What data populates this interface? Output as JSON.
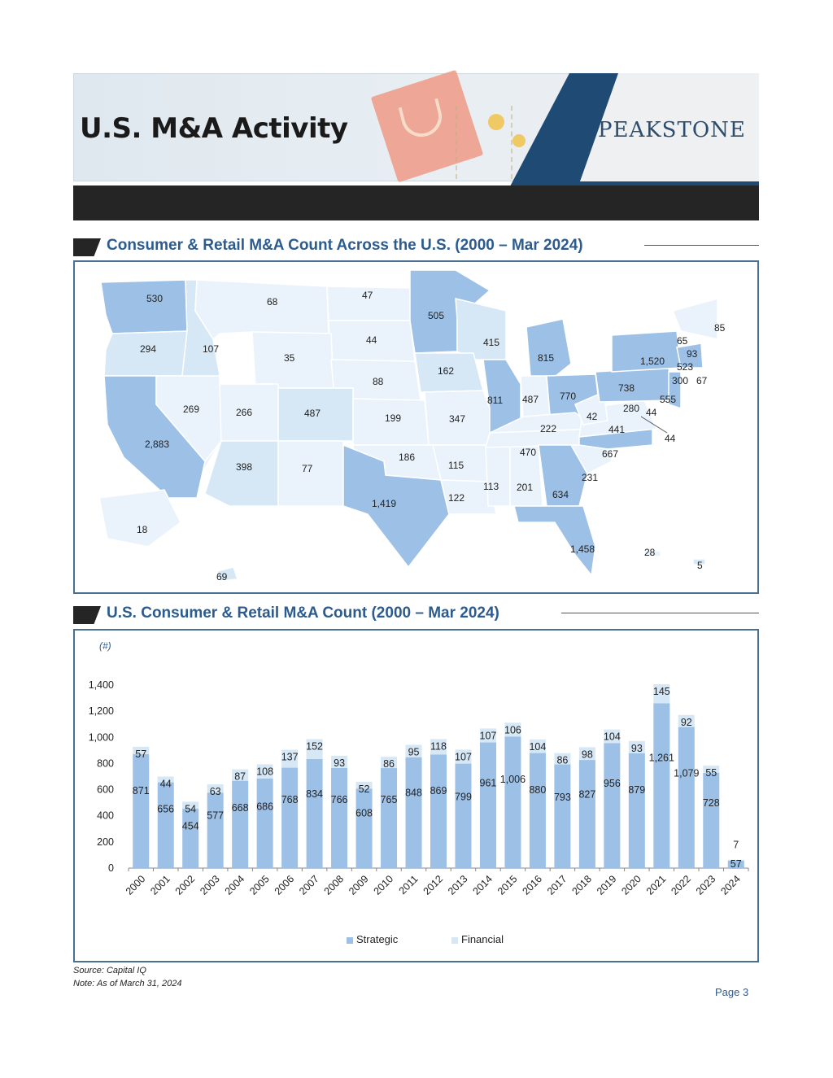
{
  "header": {
    "title": "U.S. M&A Activity",
    "logo_text": "PEAKSTONE"
  },
  "map_section": {
    "title": "Consumer & Retail M&A Count Across the U.S. (2000 – Mar 2024)",
    "states": [
      {
        "state": "WA",
        "value": "530"
      },
      {
        "state": "MT",
        "value": "68"
      },
      {
        "state": "ND",
        "value": "47"
      },
      {
        "state": "MN",
        "value": "505"
      },
      {
        "state": "ME",
        "value": "85"
      },
      {
        "state": "OR",
        "value": "294"
      },
      {
        "state": "ID",
        "value": "107"
      },
      {
        "state": "WY",
        "value": "35"
      },
      {
        "state": "SD",
        "value": "44"
      },
      {
        "state": "WI",
        "value": "415"
      },
      {
        "state": "VT",
        "value": "65"
      },
      {
        "state": "NH",
        "value": "93"
      },
      {
        "state": "MI",
        "value": "815"
      },
      {
        "state": "NY",
        "value": "1,520"
      },
      {
        "state": "MA",
        "value": "523"
      },
      {
        "state": "IA",
        "value": "162"
      },
      {
        "state": "NE",
        "value": "88"
      },
      {
        "state": "CT",
        "value": "300"
      },
      {
        "state": "RI",
        "value": "67"
      },
      {
        "state": "PA",
        "value": "738"
      },
      {
        "state": "NV",
        "value": "269"
      },
      {
        "state": "IL",
        "value": "811"
      },
      {
        "state": "IN",
        "value": "487"
      },
      {
        "state": "OH",
        "value": "770"
      },
      {
        "state": "NJ",
        "value": "555"
      },
      {
        "state": "UT",
        "value": "266"
      },
      {
        "state": "CO",
        "value": "487"
      },
      {
        "state": "KS",
        "value": "199"
      },
      {
        "state": "MO",
        "value": "347"
      },
      {
        "state": "DE",
        "value": "44"
      },
      {
        "state": "MD",
        "value": "280"
      },
      {
        "state": "WV",
        "value": "42"
      },
      {
        "state": "KY",
        "value": "222"
      },
      {
        "state": "VA",
        "value": "441"
      },
      {
        "state": "DC",
        "value": "44"
      },
      {
        "state": "CA",
        "value": "2,883"
      },
      {
        "state": "TN",
        "value": "470"
      },
      {
        "state": "NC",
        "value": "667"
      },
      {
        "state": "AZ",
        "value": "398"
      },
      {
        "state": "NM",
        "value": "77"
      },
      {
        "state": "OK",
        "value": "186"
      },
      {
        "state": "AR",
        "value": "115"
      },
      {
        "state": "SC",
        "value": "231"
      },
      {
        "state": "MS",
        "value": "113"
      },
      {
        "state": "AL",
        "value": "201"
      },
      {
        "state": "GA",
        "value": "634"
      },
      {
        "state": "LA",
        "value": "122"
      },
      {
        "state": "TX",
        "value": "1,419"
      },
      {
        "state": "AK",
        "value": "18"
      },
      {
        "state": "FL",
        "value": "1,458"
      },
      {
        "state": "PR",
        "value": "28"
      },
      {
        "state": "VI",
        "value": "5"
      },
      {
        "state": "HI",
        "value": "69"
      }
    ]
  },
  "chart_section": {
    "title": "U.S. Consumer & Retail M&A Count (2000 – Mar 2024)",
    "unit_label": "(#)"
  },
  "chart_data": {
    "type": "bar",
    "stacked": true,
    "categories": [
      "2000",
      "2001",
      "2002",
      "2003",
      "2004",
      "2005",
      "2006",
      "2007",
      "2008",
      "2009",
      "2010",
      "2011",
      "2012",
      "2013",
      "2014",
      "2015",
      "2016",
      "2017",
      "2018",
      "2019",
      "2020",
      "2021",
      "2022",
      "2023",
      "2024"
    ],
    "series": [
      {
        "name": "Strategic",
        "color": "#9dc0e6",
        "values": [
          871,
          656,
          454,
          577,
          668,
          686,
          768,
          834,
          766,
          608,
          765,
          848,
          869,
          799,
          961,
          1006,
          880,
          793,
          827,
          956,
          879,
          1261,
          1079,
          728,
          57
        ]
      },
      {
        "name": "Financial",
        "color": "#d6e7f6",
        "values": [
          57,
          44,
          54,
          63,
          87,
          108,
          137,
          152,
          93,
          52,
          86,
          95,
          118,
          107,
          107,
          106,
          104,
          86,
          98,
          104,
          93,
          145,
          92,
          55,
          7
        ]
      }
    ],
    "strategic_labels": [
      "871",
      "656",
      "454",
      "577",
      "668",
      "686",
      "768",
      "834",
      "766",
      "608",
      "765",
      "848",
      "869",
      "799",
      "961",
      "1,006",
      "880",
      "793",
      "827",
      "956",
      "879",
      "1,261",
      "1,079",
      "728",
      "57"
    ],
    "financial_labels": [
      "57",
      "44",
      "54",
      "63",
      "87",
      "108",
      "137",
      "152",
      "93",
      "52",
      "86",
      "95",
      "118",
      "107",
      "107",
      "106",
      "104",
      "86",
      "98",
      "104",
      "93",
      "145",
      "92",
      "55",
      "7"
    ],
    "y_ticks": [
      "0",
      "200",
      "400",
      "600",
      "800",
      "1,000",
      "1,200",
      "1,400"
    ],
    "ylim": [
      0,
      1400
    ],
    "legend_position": "bottom"
  },
  "footer": {
    "source": "Source: Capital IQ",
    "note": "Note: As of March 31, 2024",
    "page": "Page 3"
  }
}
